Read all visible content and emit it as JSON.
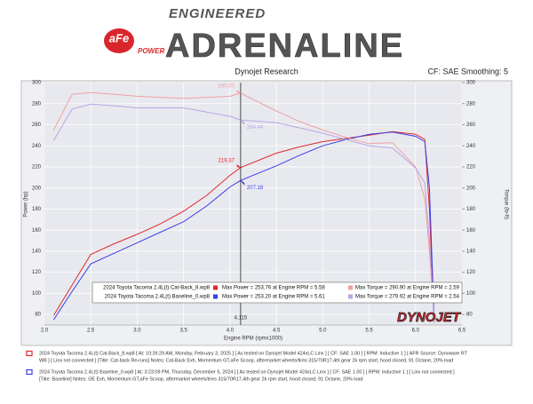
{
  "header": {
    "brand": "aFe",
    "brand_sub": "POWER",
    "tagline_top": "ENGINEERED",
    "tagline": "ADRENALINE",
    "source": "Dynojet Research",
    "settings": "CF: SAE Smoothing: 5"
  },
  "chart_data": {
    "type": "line",
    "xlabel": "Engine RPM (rpmx1000)",
    "ylabel": "Power (hp)",
    "y2label": "Torque (lb-ft)",
    "xlim": [
      2.0,
      6.5
    ],
    "xticks": [
      {
        "value": 2.0,
        "label": "2.0"
      },
      2.5,
      {
        "value": 3.0,
        "label": "3.0"
      },
      3.5,
      {
        "value": 4.0,
        "label": "4.0"
      },
      4.5,
      {
        "value": 5.0,
        "label": "5.0"
      },
      5.5,
      {
        "value": 6.0,
        "label": "6.0"
      },
      6.5
    ],
    "ylim": [
      70,
      300
    ],
    "yticks": [
      80,
      100,
      120,
      140,
      160,
      180,
      200,
      220,
      240,
      260,
      280,
      300
    ],
    "y2lim": [
      70,
      300
    ],
    "y2ticks": [
      80,
      100,
      120,
      140,
      160,
      180,
      200,
      220,
      240,
      260,
      280,
      300
    ],
    "grid": true,
    "x": [
      2.1,
      2.3,
      2.5,
      2.75,
      3.0,
      3.25,
      3.5,
      3.75,
      4.0,
      4.115,
      4.5,
      4.75,
      5.0,
      5.25,
      5.5,
      5.75,
      6.0,
      6.1,
      6.15,
      6.2
    ],
    "series": [
      {
        "name": "2024 Toyota Tacoma 2.4L(t) Cat-Back_8.wp8",
        "color": "#e0282e",
        "axis": "y",
        "values": [
          79,
          108,
          137,
          147,
          156,
          166,
          178,
          193,
          212,
          219.37,
          233,
          239,
          244,
          247,
          250,
          253.5,
          251,
          246,
          180,
          72
        ]
      },
      {
        "name": "2024 Toyota Tacoma 2.4L(t) Baseline_0.wp8",
        "color": "#3b3fe0",
        "axis": "y",
        "values": [
          75,
          102,
          128,
          138,
          148,
          158,
          168,
          183,
          201,
          207.18,
          221,
          231,
          240,
          246,
          251,
          253,
          249,
          244,
          200,
          75
        ]
      },
      {
        "name": "Torque Cat-Back",
        "color": "#f0a0a4",
        "axis": "y2",
        "values": [
          255,
          289,
          290.5,
          289,
          287,
          286,
          285,
          286,
          287,
          290,
          273,
          263,
          255,
          248,
          242,
          243,
          220,
          190,
          140,
          75
        ]
      },
      {
        "name": "Torque Baseline",
        "color": "#b9a4e6",
        "axis": "y2",
        "values": [
          245,
          275,
          279.5,
          278,
          276,
          276,
          276,
          272,
          268,
          264.44,
          262,
          257,
          252,
          246,
          240,
          238,
          219,
          205,
          150,
          72
        ]
      }
    ],
    "cursor": {
      "value": 4.115,
      "label": "4.115"
    },
    "annotations": [
      {
        "text": "290.00",
        "value": 290.0,
        "series": 2
      },
      {
        "text": "264.44",
        "value": 264.44,
        "series": 3
      },
      {
        "text": "219.37",
        "value": 219.37,
        "series": 0
      },
      {
        "text": "207.18",
        "value": 207.18,
        "series": 1
      }
    ],
    "legend_rows": [
      {
        "power": "Max Power = 253.76 at Engine RPM = 5.58",
        "torque": "Max Torque = 290.90 at Engine RPM = 2.59"
      },
      {
        "power": "Max Power = 253.20 at Engine RPM = 5.61",
        "torque": "Max Torque = 279.92 at Engine RPM = 2.54"
      }
    ]
  },
  "footer": {
    "logo": "DYNOJET",
    "notes": [
      [
        "2024 Toyota Tacoma 2.4L(t) Cat-Back_8.wp8 [ At: 10:26:29 AM, Monday, February 3, 2025 ] [ As tested on Dynojet Model 424xLC Linx ] [ CF: SAE 1.00 ] [ RPM: Inductive 1 ] [ AFR Source: Dynoware RT",
        "WB ] [ Linx not connected ] [Title: Cat-back Re-runs]  Notes: Cat-Back Exh, Momentum GT,aFe Scoop, aftermarket wheels/tires 315/70R17,4th gear 2k rpm start, hood closed, 91 Octane, 20% load"
      ],
      [
        "2024 Toyota Tacoma 2.4L(t) Baseline_0.wp8 [ At: 3:23:09 PM, Thursday, December 5, 2024 ] [ As tested on Dynojet Model 424xLC Linx ] [ CF: SAE 1.00 ] [ RPM: Inductive 1 ] [ Linx not connected ]",
        "[Title: Baseline]  Notes: OE Exh, Momentum GT,aFe Scoop, aftermarket wheels/tires 315/70R17,4th gear 2k rpm start, hood closed, 91 Octane, 20% load"
      ]
    ]
  }
}
